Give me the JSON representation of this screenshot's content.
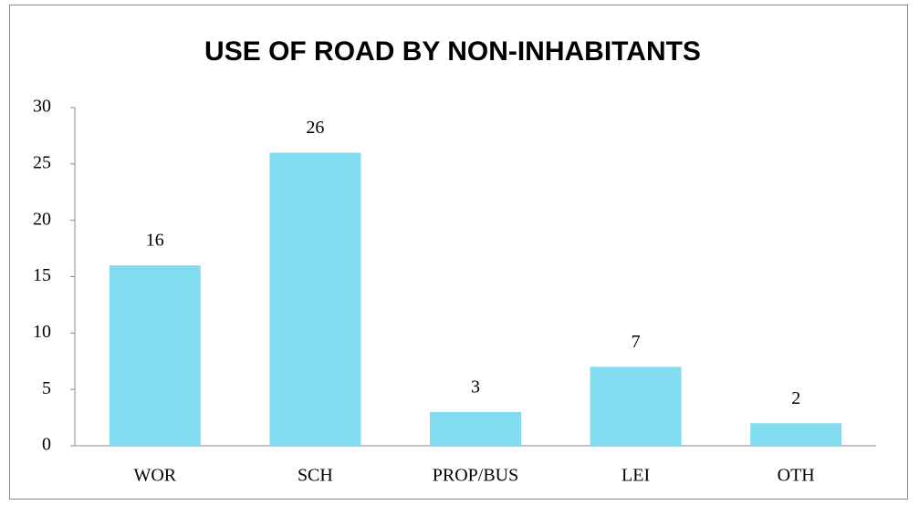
{
  "chart_data": {
    "type": "bar",
    "title": "USE OF ROAD BY NON-INHABITANTS",
    "categories": [
      "WOR",
      "SCH",
      "PROP/BUS",
      "LEI",
      "OTH"
    ],
    "values": [
      16,
      26,
      3,
      7,
      2
    ],
    "color": "#80dcee",
    "ylim": [
      0,
      30
    ],
    "yticks": [
      0,
      5,
      10,
      15,
      20,
      25,
      30
    ],
    "grid": false
  }
}
